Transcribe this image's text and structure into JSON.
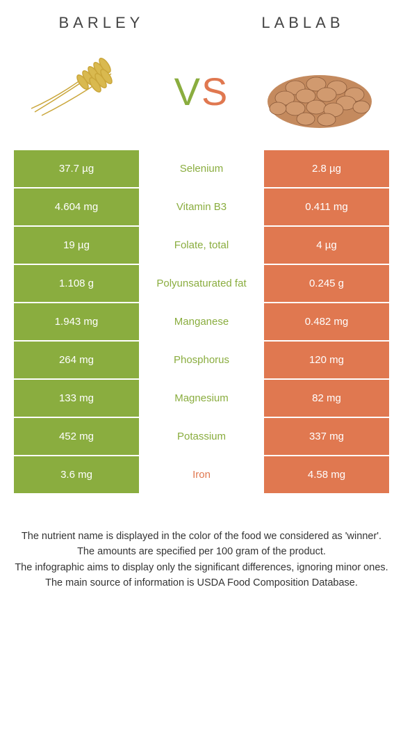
{
  "header": {
    "left_title": "BARLEY",
    "right_title": "LABLAB"
  },
  "vs": {
    "v": "V",
    "s": "S"
  },
  "colors": {
    "left_bg": "#8aad3f",
    "right_bg": "#e07850",
    "left_text": "#8aad3f",
    "right_text": "#e07850",
    "header_text": "#444444"
  },
  "rows": [
    {
      "left": "37.7 µg",
      "mid": "Selenium",
      "right": "2.8 µg",
      "winner": "left"
    },
    {
      "left": "4.604 mg",
      "mid": "Vitamin B3",
      "right": "0.411 mg",
      "winner": "left"
    },
    {
      "left": "19 µg",
      "mid": "Folate, total",
      "right": "4 µg",
      "winner": "left"
    },
    {
      "left": "1.108 g",
      "mid": "Polyunsaturated fat",
      "right": "0.245 g",
      "winner": "left"
    },
    {
      "left": "1.943 mg",
      "mid": "Manganese",
      "right": "0.482 mg",
      "winner": "left"
    },
    {
      "left": "264 mg",
      "mid": "Phosphorus",
      "right": "120 mg",
      "winner": "left"
    },
    {
      "left": "133 mg",
      "mid": "Magnesium",
      "right": "82 mg",
      "winner": "left"
    },
    {
      "left": "452 mg",
      "mid": "Potassium",
      "right": "337 mg",
      "winner": "left"
    },
    {
      "left": "3.6 mg",
      "mid": "Iron",
      "right": "4.58 mg",
      "winner": "right"
    }
  ],
  "footer": {
    "line1": "The nutrient name is displayed in the color of the food we considered as 'winner'.",
    "line2": "The amounts are specified per 100 gram of the product.",
    "line3": "The infographic aims to display only the significant differences, ignoring minor ones.",
    "line4": "The main source of information is USDA Food Composition Database."
  }
}
